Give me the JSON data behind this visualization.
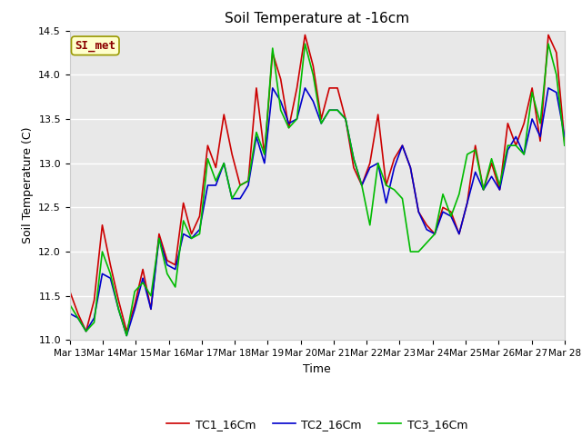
{
  "title": "Soil Temperature at -16cm",
  "xlabel": "Time",
  "ylabel": "Soil Temperature (C)",
  "ylim": [
    11.0,
    14.5
  ],
  "annotation": "SI_met",
  "fig_bg_color": "#ffffff",
  "plot_bg_color": "#e8e8e8",
  "grid_color": "#ffffff",
  "line_colors": {
    "TC1": "#cc0000",
    "TC2": "#0000cc",
    "TC3": "#00bb00"
  },
  "legend_labels": [
    "TC1_16Cm",
    "TC2_16Cm",
    "TC3_16Cm"
  ],
  "x_tick_labels": [
    "Mar 13",
    "Mar 14",
    "Mar 15",
    "Mar 16",
    "Mar 17",
    "Mar 18",
    "Mar 19",
    "Mar 20",
    "Mar 21",
    "Mar 22",
    "Mar 23",
    "Mar 24",
    "Mar 25",
    "Mar 26",
    "Mar 27",
    "Mar 28"
  ],
  "TC1_16Cm": [
    11.55,
    11.3,
    11.1,
    11.45,
    12.3,
    11.85,
    11.45,
    11.1,
    11.4,
    11.8,
    11.35,
    12.2,
    11.9,
    11.85,
    12.55,
    12.2,
    12.4,
    13.2,
    12.95,
    13.55,
    13.1,
    12.75,
    12.8,
    13.85,
    13.1,
    14.25,
    13.95,
    13.4,
    13.85,
    14.45,
    14.1,
    13.5,
    13.85,
    13.85,
    13.5,
    12.95,
    12.75,
    13.0,
    13.55,
    12.75,
    13.05,
    13.2,
    12.95,
    12.45,
    12.3,
    12.2,
    12.5,
    12.45,
    12.2,
    12.55,
    13.2,
    12.7,
    13.0,
    12.7,
    13.45,
    13.2,
    13.45,
    13.85,
    13.25,
    14.45,
    14.25,
    13.25
  ],
  "TC2_16Cm": [
    11.3,
    11.25,
    11.1,
    11.25,
    11.75,
    11.7,
    11.35,
    11.05,
    11.35,
    11.7,
    11.35,
    12.15,
    11.85,
    11.8,
    12.2,
    12.15,
    12.25,
    12.75,
    12.75,
    13.0,
    12.6,
    12.6,
    12.75,
    13.3,
    13.0,
    13.85,
    13.7,
    13.45,
    13.5,
    13.85,
    13.7,
    13.45,
    13.6,
    13.6,
    13.5,
    13.05,
    12.75,
    12.95,
    13.0,
    12.55,
    12.95,
    13.2,
    12.95,
    12.45,
    12.25,
    12.2,
    12.45,
    12.4,
    12.2,
    12.55,
    12.9,
    12.7,
    12.85,
    12.7,
    13.15,
    13.3,
    13.1,
    13.5,
    13.3,
    13.85,
    13.8,
    13.3
  ],
  "TC3_16Cm": [
    11.4,
    11.25,
    11.1,
    11.2,
    12.0,
    11.75,
    11.35,
    11.05,
    11.55,
    11.65,
    11.5,
    12.15,
    11.75,
    11.6,
    12.35,
    12.15,
    12.2,
    13.05,
    12.8,
    13.0,
    12.6,
    12.75,
    12.8,
    13.35,
    13.1,
    14.3,
    13.6,
    13.4,
    13.5,
    14.35,
    14.0,
    13.45,
    13.6,
    13.6,
    13.5,
    13.05,
    12.75,
    12.3,
    13.0,
    12.75,
    12.7,
    12.6,
    12.0,
    12.0,
    12.1,
    12.2,
    12.65,
    12.4,
    12.65,
    13.1,
    13.15,
    12.7,
    13.05,
    12.75,
    13.2,
    13.2,
    13.1,
    13.8,
    13.45,
    14.35,
    14.0,
    13.2
  ]
}
